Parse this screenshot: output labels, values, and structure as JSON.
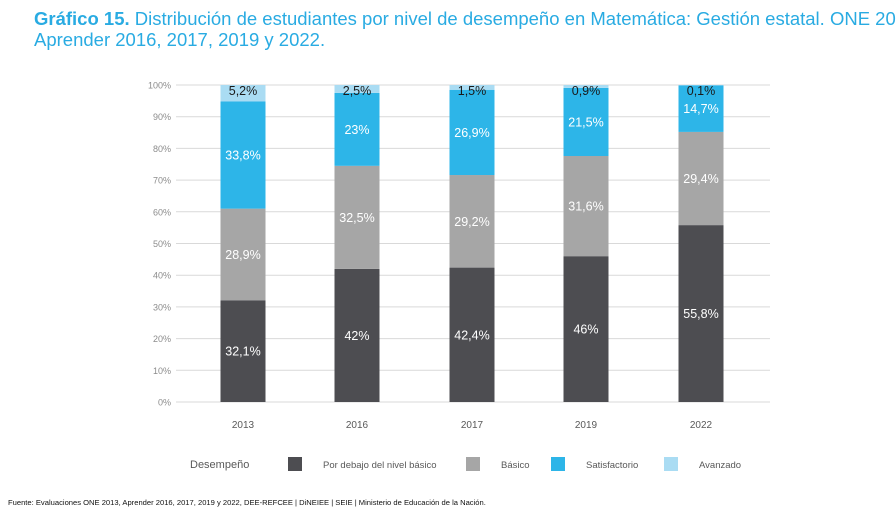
{
  "title_bold": "Gráfico 15.",
  "title_line1": " Distribución de estudiantes por nivel de desempeño en Matemática: Gestión estatal. ONE 20",
  "title_line2": "Aprender 2016, 2017, 2019 y 2022.",
  "source": "Fuente: Evaluaciones ONE 2013, Aprender 2016, 2017, 2019 y 2022, DEE-REFCEE | DiNEIEE | SEIE | Ministerio de Educación de la Nación.",
  "chart_data": {
    "type": "bar",
    "stacked": true,
    "categories": [
      "2013",
      "2016",
      "2017",
      "2019",
      "2022"
    ],
    "y_ticks": [
      "0%",
      "10%",
      "20%",
      "30%",
      "40%",
      "50%",
      "60%",
      "70%",
      "80%",
      "90%",
      "100%"
    ],
    "ylim": [
      0,
      100
    ],
    "legend_title": "Desempeño",
    "legend_position": "bottom",
    "series": [
      {
        "name": "Por debajo del nivel básico",
        "color": "#4d4d51",
        "values": [
          32.1,
          42,
          42.4,
          46,
          55.8
        ],
        "labels": [
          "32,1%",
          "42%",
          "42,4%",
          "46%",
          "55,8%"
        ]
      },
      {
        "name": "Básico",
        "color": "#a6a6a6",
        "values": [
          28.9,
          32.5,
          29.2,
          31.6,
          29.4
        ],
        "labels": [
          "28,9%",
          "32,5%",
          "29,2%",
          "31,6%",
          "29,4%"
        ]
      },
      {
        "name": "Satisfactorio",
        "color": "#2db5e8",
        "values": [
          33.8,
          23,
          26.9,
          21.5,
          14.7
        ],
        "labels": [
          "33,8%",
          "23%",
          "26,9%",
          "21,5%",
          "14,7%"
        ]
      },
      {
        "name": "Avanzado",
        "color": "#aadcf3",
        "values": [
          5.2,
          2.5,
          1.5,
          0.9,
          0.1
        ],
        "labels": [
          "5,2%",
          "2,5%",
          "1,5%",
          "0,9%",
          "0,1%"
        ]
      }
    ]
  }
}
